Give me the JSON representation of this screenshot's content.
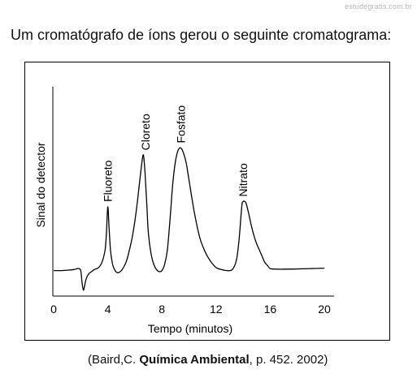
{
  "watermark": "estudegratis.com.br",
  "question": "Um cromatógrafo de íons gerou o seguinte cromatograma:",
  "citation": {
    "prefix": "(Baird,C. ",
    "title": "Química Ambiental",
    "suffix": ", p. 452. 2002)"
  },
  "chart_data": {
    "type": "line",
    "title": "",
    "xlabel": "Tempo (minutos)",
    "ylabel": "Sinal do detector",
    "xlim": [
      0,
      20
    ],
    "ylim": [
      0,
      10
    ],
    "xticks": [
      0,
      4,
      8,
      12,
      16,
      20
    ],
    "xtick_labels": [
      "0",
      "4",
      "8",
      "12",
      "16",
      "20"
    ],
    "grid": false,
    "legend": "none",
    "series": [
      {
        "x": [
          0,
          0.5,
          1.0,
          1.5,
          1.8,
          2.0,
          2.1,
          2.2,
          2.3,
          2.4,
          2.6,
          2.8,
          3.0,
          3.2,
          3.4,
          3.6,
          3.8,
          3.9,
          4.0,
          4.1,
          4.2,
          4.3,
          4.4,
          4.6,
          4.8,
          5.0,
          5.2,
          5.4,
          5.6,
          5.8,
          6.0,
          6.2,
          6.4,
          6.6,
          6.7,
          6.8,
          6.9,
          7.0,
          7.2,
          7.4,
          7.6,
          7.8,
          8.0,
          8.2,
          8.4,
          8.6,
          8.8,
          9.0,
          9.2,
          9.4,
          9.6,
          9.8,
          10.0,
          10.4,
          10.8,
          11.2,
          11.6,
          12.0,
          12.4,
          12.8,
          13.2,
          13.5,
          13.7,
          13.9,
          14.0,
          14.2,
          14.4,
          14.6,
          14.8,
          15.0,
          15.2,
          15.4,
          15.6,
          15.8,
          16.0,
          16.5,
          17.0,
          18.0,
          19.0,
          20.0
        ],
        "y": [
          1.0,
          1.0,
          1.02,
          1.05,
          1.1,
          1.0,
          0.4,
          0.05,
          0.3,
          0.6,
          0.85,
          0.95,
          1.05,
          1.1,
          1.2,
          1.45,
          2.0,
          2.8,
          4.1,
          3.0,
          2.0,
          1.5,
          1.2,
          0.95,
          0.9,
          1.0,
          1.2,
          1.5,
          2.0,
          2.6,
          3.4,
          4.4,
          5.6,
          6.6,
          6.2,
          5.2,
          4.0,
          2.8,
          1.8,
          1.3,
          1.05,
          0.95,
          1.0,
          1.3,
          2.0,
          3.5,
          5.2,
          6.3,
          6.85,
          6.95,
          6.7,
          6.2,
          5.4,
          3.8,
          2.6,
          1.9,
          1.45,
          1.15,
          1.05,
          1.0,
          1.05,
          1.5,
          2.5,
          4.1,
          4.35,
          4.3,
          3.8,
          3.2,
          2.7,
          2.3,
          2.0,
          1.7,
          1.4,
          1.25,
          1.1,
          1.07,
          1.07,
          1.08,
          1.1,
          1.12
        ]
      }
    ],
    "annotations": [
      {
        "text": "Fluoreto",
        "x": 4.0,
        "y": 4.1
      },
      {
        "text": "Cloreto",
        "x": 6.8,
        "y": 6.6
      },
      {
        "text": "Fosfato",
        "x": 9.4,
        "y": 6.95
      },
      {
        "text": "Nitrato",
        "x": 14.0,
        "y": 4.35
      }
    ]
  }
}
